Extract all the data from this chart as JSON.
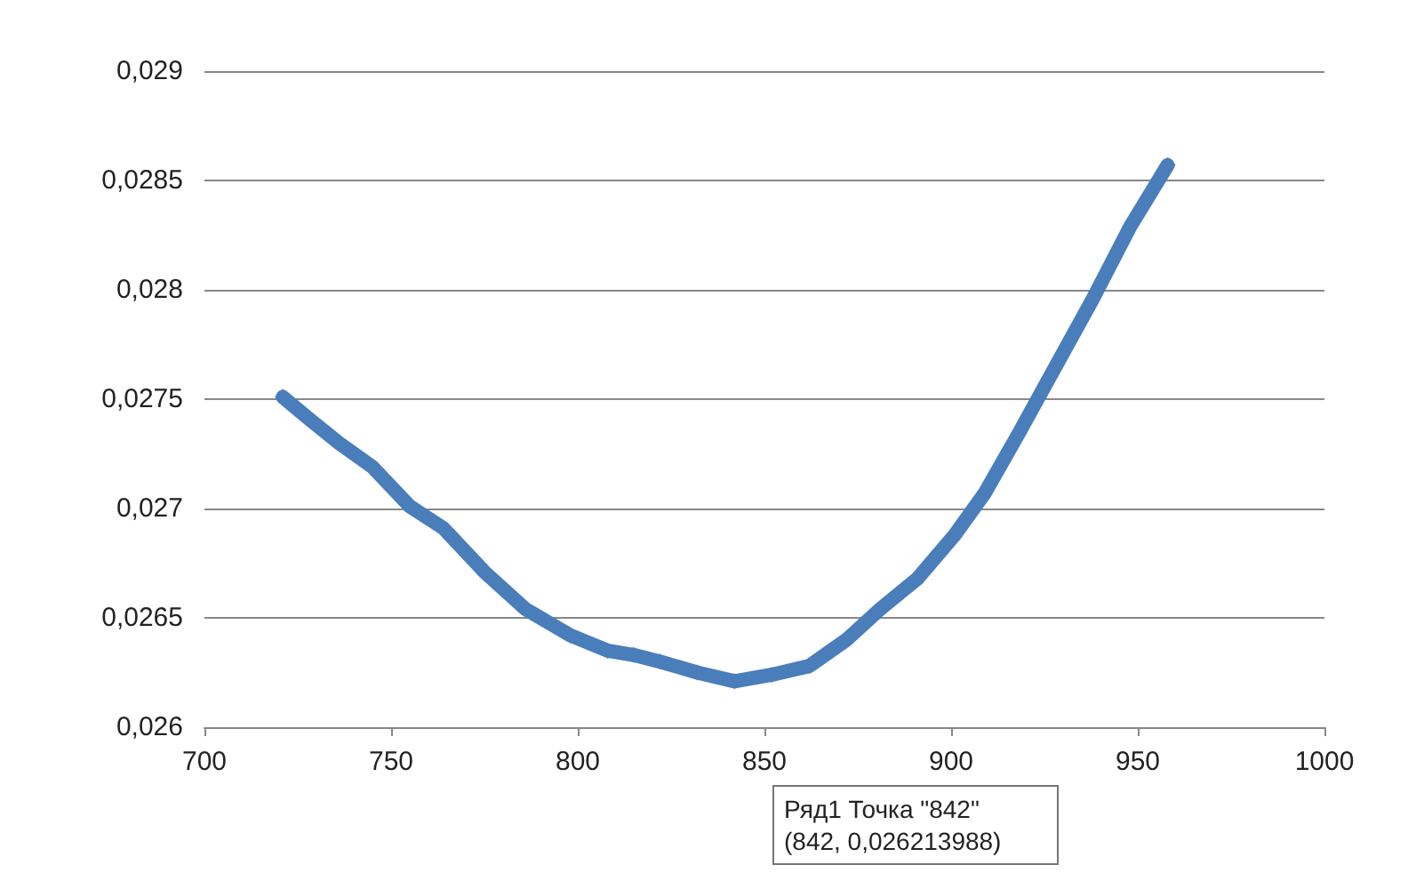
{
  "chart_data": {
    "type": "line",
    "x": [
      721,
      728,
      736,
      745,
      755,
      764,
      775,
      786,
      798,
      808,
      815,
      822,
      832,
      842,
      852,
      862,
      872,
      881,
      891,
      901,
      909,
      918,
      928,
      938,
      948,
      958
    ],
    "series": [
      {
        "color": "#4a7ebb",
        "values": [
          0.02751,
          0.02741,
          0.0273,
          0.02719,
          0.02701,
          0.02691,
          0.02671,
          0.02654,
          0.02642,
          0.02635,
          0.02633,
          0.0263,
          0.02625,
          0.02621,
          0.02624,
          0.02628,
          0.0264,
          0.02654,
          0.02668,
          0.02688,
          0.02707,
          0.02734,
          0.02765,
          0.02796,
          0.02829,
          0.02857
        ]
      }
    ],
    "xlim": [
      700,
      1000
    ],
    "xticks": [
      700,
      750,
      800,
      850,
      900,
      950,
      1000
    ],
    "ylim": [
      0.026,
      0.029
    ],
    "yticks": [
      {
        "value": 0.026,
        "label": "0,026"
      },
      {
        "value": 0.0265,
        "label": "0,0265"
      },
      {
        "value": 0.027,
        "label": "0,027"
      },
      {
        "value": 0.0275,
        "label": "0,0275"
      },
      {
        "value": 0.028,
        "label": "0,028"
      },
      {
        "value": 0.0285,
        "label": "0,0285"
      },
      {
        "value": 0.029,
        "label": "0,029"
      }
    ],
    "grid": "y",
    "marker": "diamond",
    "line_style": "solid",
    "annotations": [
      "Ряд1 Точка \"842\"\n(842, 0,026213988)"
    ]
  }
}
